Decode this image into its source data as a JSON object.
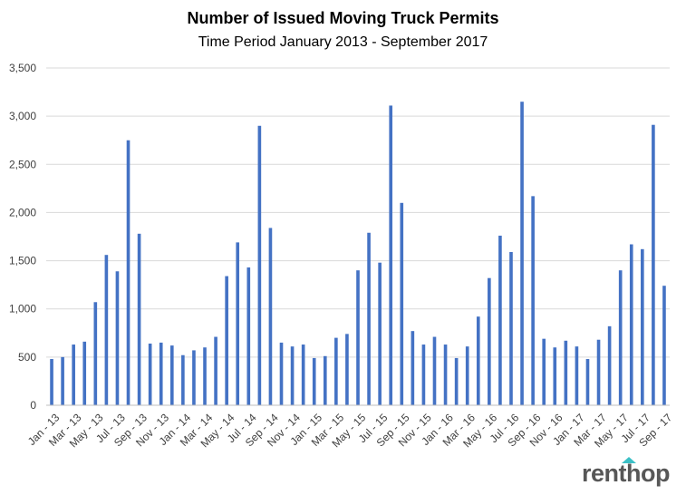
{
  "chart_data": {
    "type": "bar",
    "title": "Number of Issued Moving Truck Permits",
    "subtitle": "Time Period January 2013 - September 2017",
    "xlabel": "",
    "ylabel": "",
    "ylim": [
      0,
      3500
    ],
    "yticks": [
      0,
      500,
      1000,
      1500,
      2000,
      2500,
      3000,
      3500
    ],
    "ytick_labels": [
      "0",
      "500",
      "1,000",
      "1,500",
      "2,000",
      "2,500",
      "3,000",
      "3,500"
    ],
    "grid": true,
    "legend": "none",
    "bar_color": "#4472c4",
    "categories": [
      "Jan - 13",
      "Feb - 13",
      "Mar - 13",
      "Apr - 13",
      "May - 13",
      "Jun - 13",
      "Jul - 13",
      "Aug - 13",
      "Sep - 13",
      "Oct - 13",
      "Nov - 13",
      "Dec - 13",
      "Jan - 14",
      "Feb - 14",
      "Mar - 14",
      "Apr - 14",
      "May - 14",
      "Jun - 14",
      "Jul - 14",
      "Aug - 14",
      "Sep - 14",
      "Oct - 14",
      "Nov - 14",
      "Dec - 14",
      "Jan - 15",
      "Feb - 15",
      "Mar - 15",
      "Apr - 15",
      "May - 15",
      "Jun - 15",
      "Jul - 15",
      "Aug - 15",
      "Sep - 15",
      "Oct - 15",
      "Nov - 15",
      "Dec - 15",
      "Jan - 16",
      "Feb - 16",
      "Mar - 16",
      "Apr - 16",
      "May - 16",
      "Jun - 16",
      "Jul - 16",
      "Aug - 16",
      "Sep - 16",
      "Oct - 16",
      "Nov - 16",
      "Dec - 16",
      "Jan - 17",
      "Feb - 17",
      "Mar - 17",
      "Apr - 17",
      "May - 17",
      "Jun - 17",
      "Jul - 17",
      "Aug - 17",
      "Sep - 17"
    ],
    "shown_tick_labels": [
      "Jan - 13",
      "Mar - 13",
      "May - 13",
      "Jul - 13",
      "Sep - 13",
      "Nov - 13",
      "Jan - 14",
      "Mar - 14",
      "May - 14",
      "Jul - 14",
      "Sep - 14",
      "Nov - 14",
      "Jan - 15",
      "Mar - 15",
      "May - 15",
      "Jul - 15",
      "Sep - 15",
      "Nov - 15",
      "Jan - 16",
      "Mar - 16",
      "May - 16",
      "Jul - 16",
      "Sep - 16",
      "Nov - 16",
      "Jan - 17",
      "Mar - 17",
      "May - 17",
      "Jul - 17",
      "Sep - 17"
    ],
    "values": [
      480,
      500,
      630,
      660,
      1070,
      1560,
      1390,
      2750,
      1780,
      640,
      650,
      620,
      520,
      570,
      600,
      710,
      1340,
      1690,
      1430,
      2900,
      1840,
      650,
      610,
      630,
      490,
      510,
      700,
      740,
      1400,
      1790,
      1480,
      3110,
      2100,
      770,
      630,
      710,
      630,
      490,
      610,
      920,
      1320,
      1760,
      1590,
      3150,
      2170,
      690,
      600,
      670,
      610,
      480,
      680,
      820,
      1400,
      1670,
      1620,
      2910,
      1240
    ]
  },
  "logo": {
    "text": "renthop",
    "accent_color": "#3cc0c6"
  }
}
